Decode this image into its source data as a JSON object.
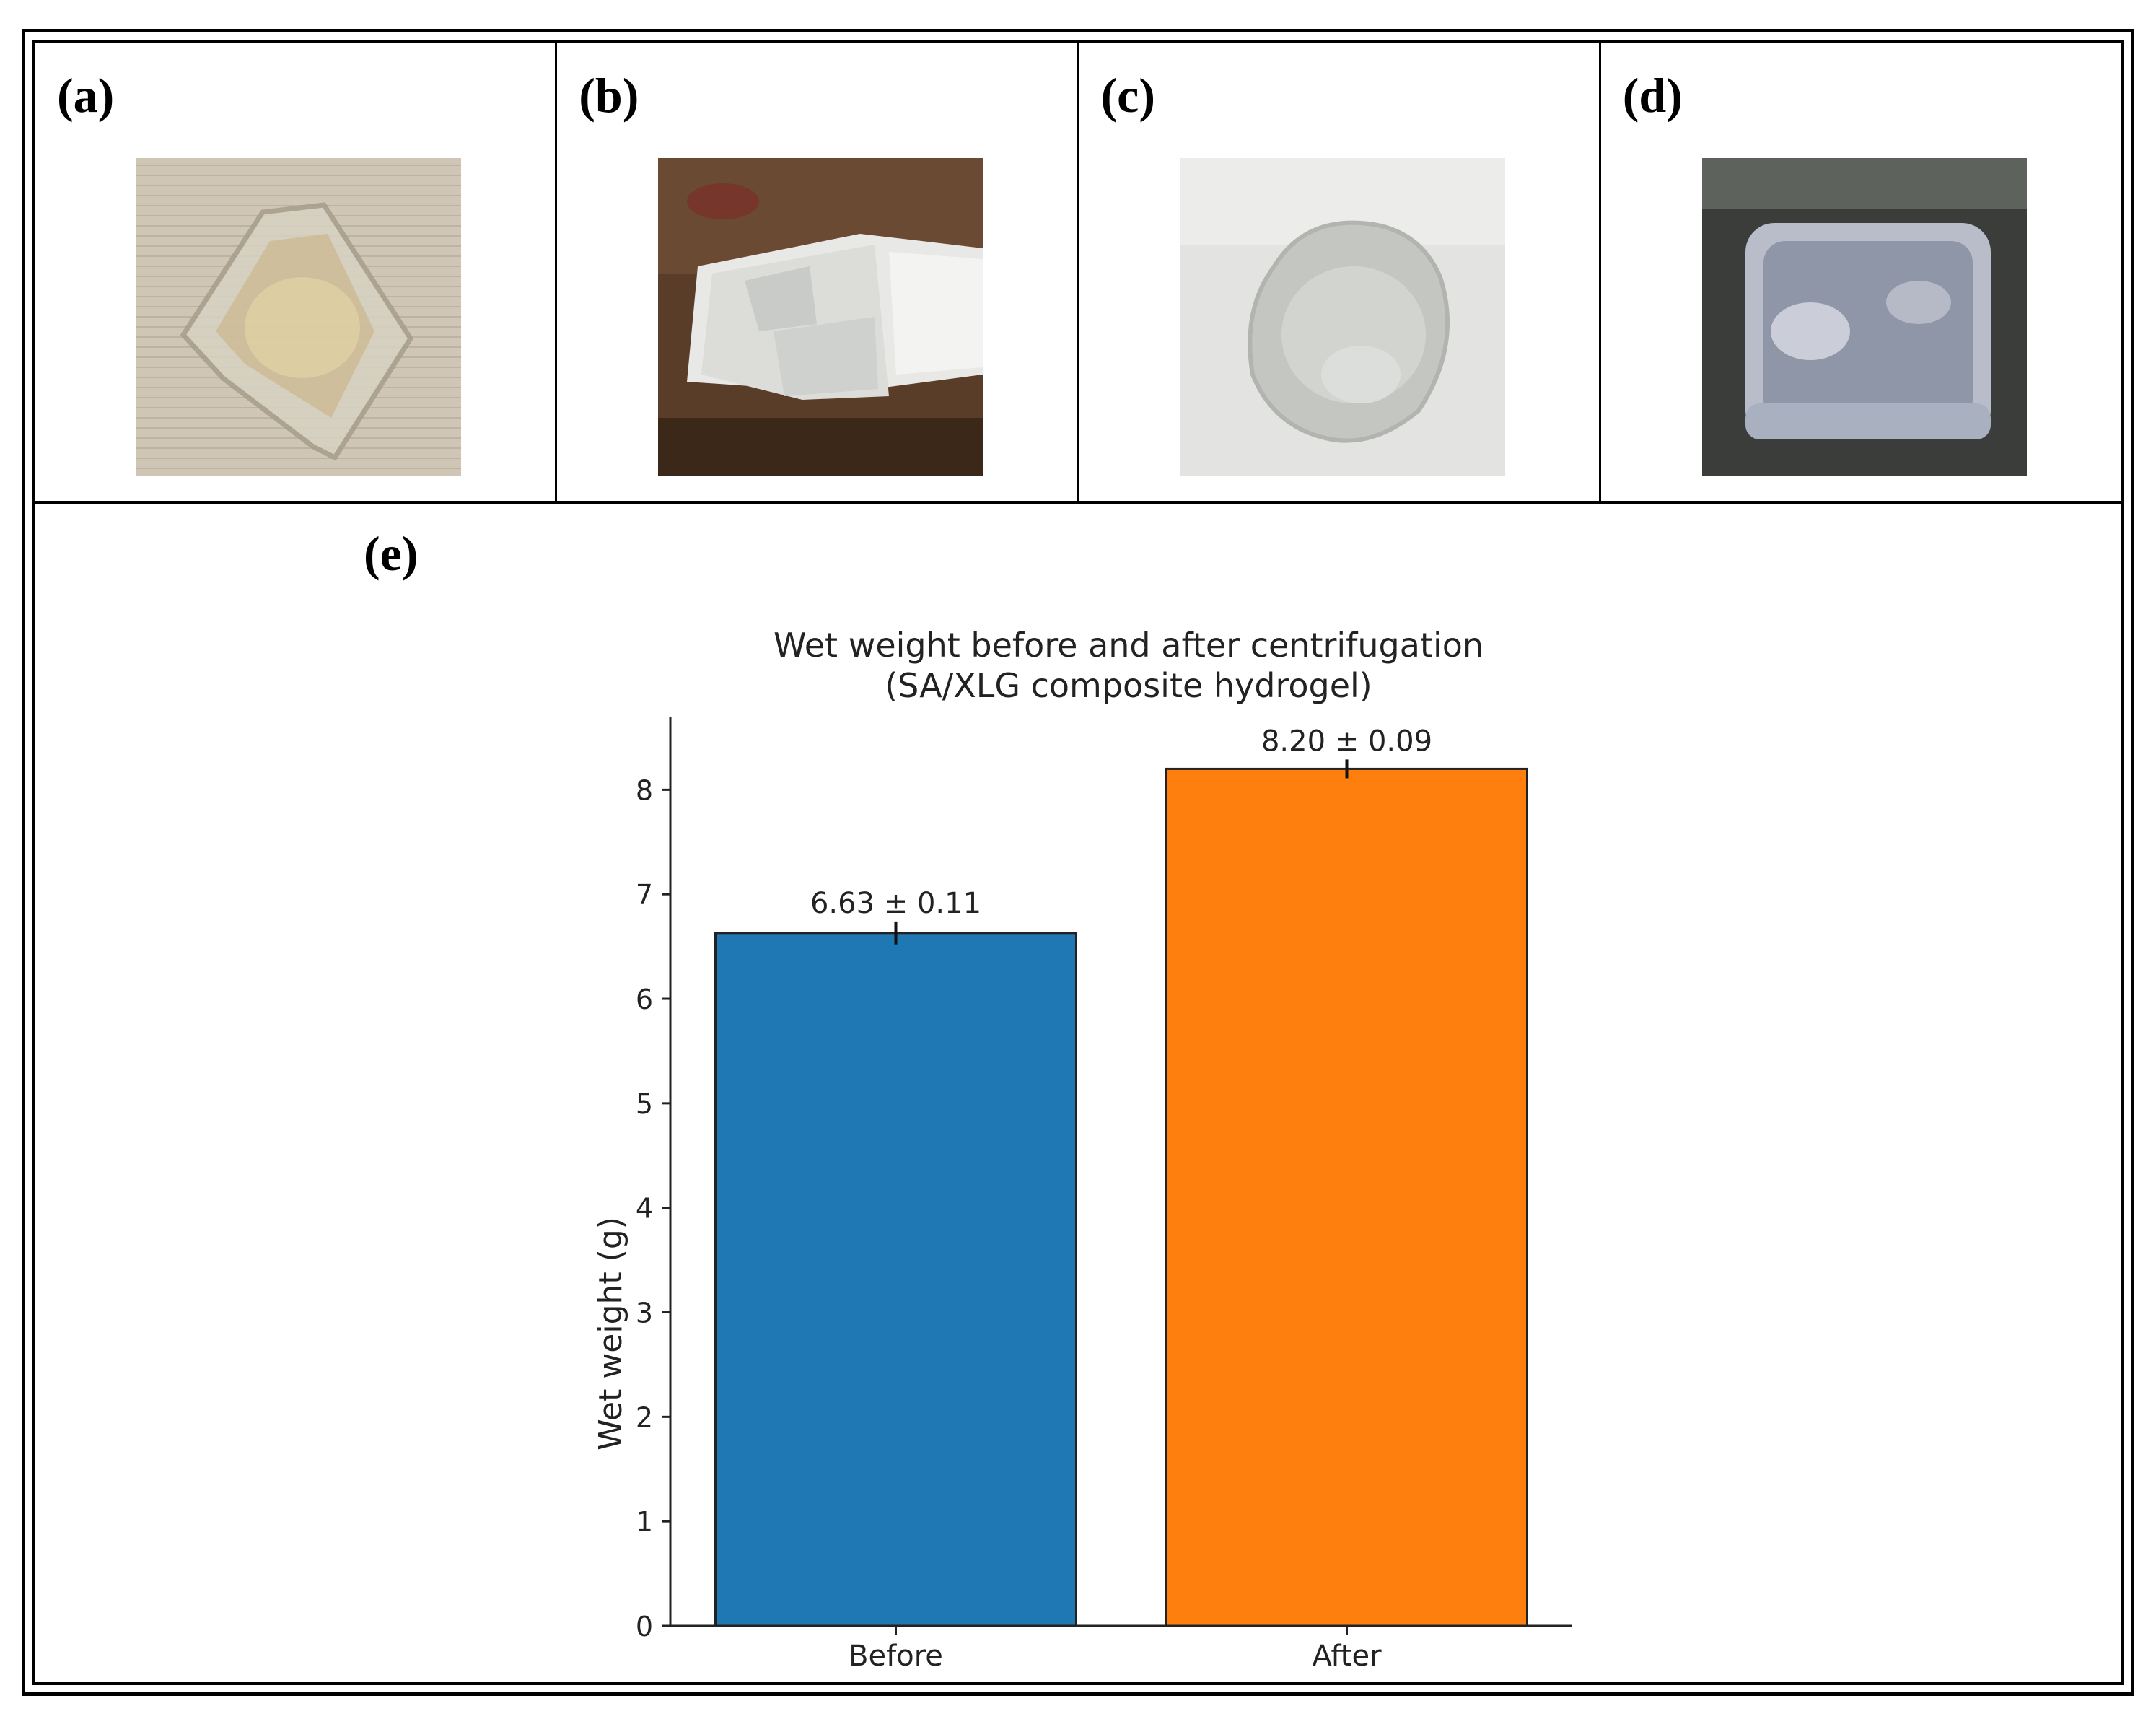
{
  "panels": [
    {
      "label": "(a)",
      "image": "transparent hydrogel on wood surface"
    },
    {
      "label": "(b)",
      "image": "white hydrogel on spatula"
    },
    {
      "label": "(c)",
      "image": "round frosted hydrogel"
    },
    {
      "label": "(d)",
      "image": "rectangular translucent hydrogel on dark surface"
    }
  ],
  "panel_e_label": "(e)",
  "chart_data": {
    "type": "bar",
    "title": "Wet weight before and after centrifugation",
    "subtitle": "(SA/XLG composite hydrogel)",
    "xlabel": "",
    "ylabel": "Wet weight (g)",
    "categories": [
      "Before",
      "After"
    ],
    "values": [
      6.63,
      8.2
    ],
    "errors": [
      0.11,
      0.09
    ],
    "data_labels": [
      "6.63 ± 0.11",
      "8.20 ± 0.09"
    ],
    "colors": [
      "#1f77b4",
      "#ff7f0e"
    ],
    "ylim": [
      0,
      8.7
    ],
    "yticks": [
      0,
      1,
      2,
      3,
      4,
      5,
      6,
      7,
      8
    ],
    "grid": false
  }
}
